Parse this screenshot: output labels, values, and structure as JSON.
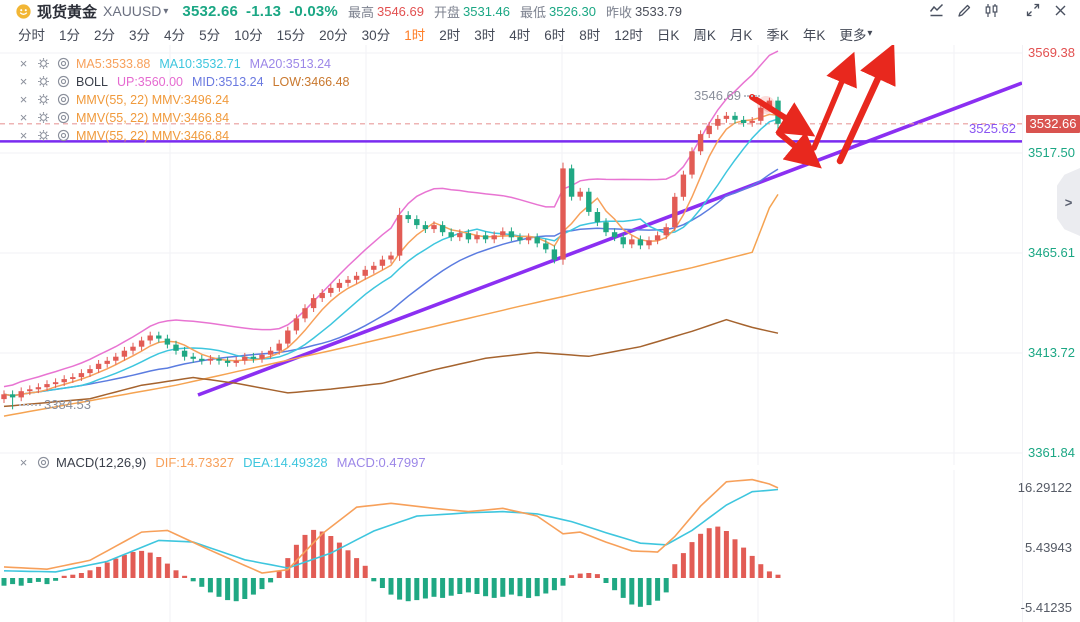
{
  "colors": {
    "up": "#e25c55",
    "down": "#1fa883",
    "accent_orange": "#ff7e27",
    "teal_text": "#1ba784",
    "red_text": "#e25050",
    "gray_text": "#7d828f",
    "dark_text": "#33363f",
    "ma5": "#f7a05a",
    "ma10": "#3ec6de",
    "ma20": "#5b7ce0",
    "boll_up": "#e874d2",
    "slow_brown": "#a5632e",
    "slow_orange": "#f5a351",
    "trendline": "#8b2ff2",
    "support_line": "#7a2bf0",
    "price_dash": "#e89c9c",
    "arrow": "#e8281e",
    "macd_dif": "#f7a05a",
    "macd_dea": "#3ec6de",
    "badge_bg": "#d9534f",
    "grid": "#f2f2f6"
  },
  "header": {
    "symbol_cn": "现货黄金",
    "symbol_code": "XAUUSD",
    "caret": "▾",
    "price": "3532.66",
    "change": "-1.13",
    "change_pct": "-0.03%",
    "stats": [
      {
        "label": "最高",
        "value": "3546.69",
        "value_color": "#e25050"
      },
      {
        "label": "开盘",
        "value": "3531.46",
        "value_color": "#1ba784"
      },
      {
        "label": "最低",
        "value": "3526.30",
        "value_color": "#1ba784"
      },
      {
        "label": "昨收",
        "value": "3533.79",
        "value_color": "#4a4e59"
      }
    ],
    "icons": [
      "indicator-line-icon",
      "draw-pencil-icon",
      "candlestick-style-icon",
      "fullscreen-icon",
      "close-icon"
    ]
  },
  "timeframes": {
    "items": [
      "分时",
      "1分",
      "2分",
      "3分",
      "4分",
      "5分",
      "10分",
      "15分",
      "20分",
      "30分",
      "1时",
      "2时",
      "3时",
      "4时",
      "6时",
      "8时",
      "12时",
      "日K",
      "周K",
      "月K",
      "季K",
      "年K"
    ],
    "active_index": 10,
    "more_label": "更多",
    "more_caret": "▾"
  },
  "indicator_rows": [
    {
      "segments": [
        {
          "text": "MA5:3533.88",
          "color": "#f7a05a"
        },
        {
          "text": "MA10:3532.71",
          "color": "#3ec6de"
        },
        {
          "text": "MA20:3513.24",
          "color": "#9c87e8"
        }
      ]
    },
    {
      "segments": [
        {
          "text": "BOLL",
          "color": "#3a3f4a"
        },
        {
          "text": "UP:3560.00",
          "color": "#e56ad0"
        },
        {
          "text": "MID:3513.24",
          "color": "#6a79e0"
        },
        {
          "text": "LOW:3466.48",
          "color": "#c9782e"
        }
      ]
    },
    {
      "segments": [
        {
          "text": "MMV(55, 22) MMV:3496.24",
          "color": "#f09a3c"
        }
      ]
    },
    {
      "segments": [
        {
          "text": "MMV(55, 22) MMV:3466.84",
          "color": "#f09a3c"
        }
      ]
    },
    {
      "segments": [
        {
          "text": "MMV(55, 22) MMV:3466.84",
          "color": "#f09a3c"
        }
      ]
    }
  ],
  "macd_row": {
    "title": "MACD(12,26,9)",
    "segments": [
      {
        "text": "DIF:14.73327",
        "color": "#f7a05a"
      },
      {
        "text": "DEA:14.49328",
        "color": "#3ec6de"
      },
      {
        "text": "MACD:0.47997",
        "color": "#9c87e8"
      }
    ]
  },
  "in_chart_labels": {
    "session_high": "3546.69",
    "session_low": "3384.53",
    "support": "3525.62"
  },
  "price_axis": {
    "ticks": [
      {
        "text": "3569.38",
        "price": 3569.38,
        "color": "#e25050"
      },
      {
        "text": "3517.50",
        "price": 3517.5,
        "color": "#1ba784"
      },
      {
        "text": "3465.61",
        "price": 3465.61,
        "color": "#1ba784"
      },
      {
        "text": "3413.72",
        "price": 3413.72,
        "color": "#1ba784"
      },
      {
        "text": "3361.84",
        "price": 3361.84,
        "color": "#1ba784"
      }
    ],
    "current": {
      "text": "3532.66",
      "price": 3532.66
    }
  },
  "macd_axis": {
    "ticks": [
      {
        "text": "16.29122",
        "value": 16.29122
      },
      {
        "text": "5.43943",
        "value": 5.43943
      },
      {
        "text": "-5.41235",
        "value": -5.41235
      }
    ]
  },
  "expander": {
    "chevron": ">"
  },
  "chart_data": {
    "type": "candlestick",
    "title": "现货黄金 XAUUSD 1时",
    "price_axis_ticks": [
      3569.38,
      3517.5,
      3465.61,
      3413.72,
      3361.84
    ],
    "current_price": 3532.66,
    "session_high": 3546.69,
    "session_low": 3384.53,
    "support_level": 3525.62,
    "closes": [
      3392.3,
      3390.7,
      3393.9,
      3394.9,
      3396.0,
      3397.6,
      3398.6,
      3400.2,
      3401.2,
      3403.3,
      3405.4,
      3408.1,
      3409.7,
      3411.8,
      3414.9,
      3417.0,
      3420.2,
      3422.8,
      3421.2,
      3418.1,
      3414.9,
      3411.8,
      3410.7,
      3409.7,
      3410.7,
      3409.7,
      3408.6,
      3409.7,
      3411.8,
      3410.7,
      3412.8,
      3414.9,
      3418.6,
      3425.4,
      3431.7,
      3437.0,
      3442.2,
      3444.9,
      3447.5,
      3450.1,
      3451.7,
      3453.8,
      3456.9,
      3459.0,
      3462.2,
      3464.3,
      3485.3,
      3483.2,
      3480.1,
      3478.0,
      3480.1,
      3476.4,
      3473.8,
      3475.9,
      3472.7,
      3474.8,
      3472.7,
      3474.8,
      3476.9,
      3473.8,
      3472.2,
      3473.8,
      3470.6,
      3467.5,
      3462.2,
      3509.5,
      3494.8,
      3497.4,
      3486.9,
      3481.6,
      3476.4,
      3473.8,
      3470.1,
      3472.7,
      3469.6,
      3472.2,
      3474.8,
      3479.0,
      3494.8,
      3506.3,
      3518.4,
      3527.3,
      3531.6,
      3535.2,
      3536.8,
      3534.7,
      3533.1,
      3534.2,
      3541.0,
      3544.7,
      3532.66
    ],
    "wick_overrides": {
      "1": {
        "low": 3384.53
      },
      "46": {
        "high": 3489.0,
        "low": 3461.5
      },
      "65": {
        "high": 3512.5,
        "low": 3459.5
      },
      "88": {
        "high": 3545.5
      },
      "89": {
        "high": 3546.2
      },
      "90": {
        "high": 3546.69,
        "low": 3529.5
      }
    },
    "overlay_keypoints": {
      "slow_brown": [
        [
          0,
          3386
        ],
        [
          10,
          3390
        ],
        [
          16,
          3397
        ],
        [
          22,
          3401
        ],
        [
          27,
          3398
        ],
        [
          33,
          3393
        ],
        [
          38,
          3395
        ],
        [
          44,
          3398
        ],
        [
          50,
          3405
        ],
        [
          56,
          3411
        ],
        [
          62,
          3414
        ],
        [
          68,
          3412
        ],
        [
          74,
          3417
        ],
        [
          80,
          3425
        ],
        [
          84,
          3431
        ],
        [
          87,
          3427
        ],
        [
          90,
          3424
        ]
      ],
      "slow_orange": [
        [
          0,
          3381
        ],
        [
          20,
          3397
        ],
        [
          40,
          3417
        ],
        [
          60,
          3438
        ],
        [
          80,
          3458
        ],
        [
          87,
          3466
        ],
        [
          89,
          3489
        ],
        [
          90,
          3496
        ]
      ]
    },
    "macd": {
      "type": "macd",
      "axis_ticks": [
        16.29122,
        5.43943,
        -5.41235
      ],
      "histogram": [
        -1.4,
        -1.1,
        -1.4,
        -0.9,
        -0.7,
        -1.1,
        -0.5,
        0.4,
        0.6,
        0.9,
        1.4,
        2.0,
        2.8,
        3.5,
        4.2,
        4.7,
        4.9,
        4.6,
        3.8,
        2.6,
        1.4,
        0.4,
        -0.6,
        -1.6,
        -2.6,
        -3.4,
        -4.0,
        -4.2,
        -3.8,
        -3.0,
        -2.0,
        -0.8,
        1.2,
        3.6,
        6.0,
        7.8,
        8.7,
        8.4,
        7.6,
        6.4,
        5.0,
        3.6,
        2.2,
        -0.6,
        -1.8,
        -3.0,
        -3.9,
        -4.2,
        -4.0,
        -3.7,
        -3.4,
        -3.6,
        -3.2,
        -2.9,
        -2.6,
        -2.9,
        -3.3,
        -3.6,
        -3.4,
        -3.0,
        -3.3,
        -3.6,
        -3.3,
        -2.8,
        -2.2,
        -1.4,
        0.5,
        0.8,
        0.9,
        0.7,
        -0.9,
        -2.2,
        -3.6,
        -4.8,
        -5.2,
        -4.9,
        -4.1,
        -2.6,
        2.5,
        4.5,
        6.5,
        8.0,
        9.0,
        9.3,
        8.5,
        7.0,
        5.5,
        4.0,
        2.5,
        1.2,
        0.6
      ],
      "dif_keypoints": [
        [
          0,
          2.0
        ],
        [
          5,
          1.6
        ],
        [
          10,
          3.2
        ],
        [
          16,
          8.3
        ],
        [
          19,
          8.6
        ],
        [
          24,
          5.0
        ],
        [
          30,
          0.9
        ],
        [
          33,
          1.5
        ],
        [
          37,
          8.0
        ],
        [
          41,
          12.8
        ],
        [
          45,
          13.5
        ],
        [
          50,
          12.6
        ],
        [
          54,
          12.0
        ],
        [
          58,
          12.6
        ],
        [
          62,
          11.2
        ],
        [
          65,
          8.0
        ],
        [
          67,
          8.3
        ],
        [
          70,
          6.5
        ],
        [
          73,
          4.9
        ],
        [
          76,
          4.7
        ],
        [
          78,
          7.5
        ],
        [
          81,
          13.0
        ],
        [
          84,
          17.4
        ],
        [
          87,
          17.8
        ],
        [
          89,
          17.0
        ],
        [
          90,
          16.3
        ]
      ],
      "dea_keypoints": [
        [
          0,
          1.3
        ],
        [
          6,
          1.1
        ],
        [
          12,
          3.0
        ],
        [
          18,
          6.8
        ],
        [
          22,
          6.5
        ],
        [
          28,
          3.3
        ],
        [
          33,
          1.8
        ],
        [
          38,
          4.5
        ],
        [
          43,
          8.5
        ],
        [
          48,
          11.2
        ],
        [
          54,
          11.8
        ],
        [
          58,
          12.0
        ],
        [
          62,
          11.6
        ],
        [
          66,
          10.2
        ],
        [
          70,
          8.2
        ],
        [
          74,
          6.3
        ],
        [
          77,
          6.0
        ],
        [
          80,
          8.6
        ],
        [
          84,
          13.2
        ],
        [
          87,
          15.6
        ],
        [
          90,
          16.0
        ]
      ]
    }
  }
}
